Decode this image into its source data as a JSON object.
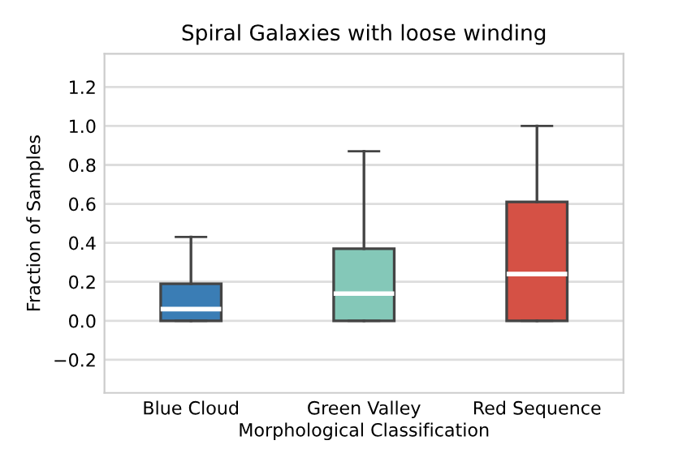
{
  "chart_data": {
    "type": "box",
    "title": "Spiral Galaxies with loose winding",
    "xlabel": "Morphological Classification",
    "ylabel": "Fraction of Samples",
    "categories": [
      "Blue Cloud",
      "Green Valley",
      "Red Sequence"
    ],
    "colors": [
      "#3a7db5",
      "#84c8b8",
      "#d55145"
    ],
    "boxes": [
      {
        "low": 0,
        "q1": 0,
        "median": 0.06,
        "q3": 0.19,
        "high": 0.43
      },
      {
        "low": 0,
        "q1": 0,
        "median": 0.14,
        "q3": 0.37,
        "high": 0.87
      },
      {
        "low": 0,
        "q1": 0,
        "median": 0.24,
        "q3": 0.61,
        "high": 1.0
      }
    ],
    "ylim": [
      -0.37,
      1.37
    ],
    "yticks": [
      {
        "value": -0.2,
        "label": "−0.2"
      },
      {
        "value": 0,
        "label": "0.0"
      },
      0.2,
      0.4,
      0.6,
      0.8,
      {
        "value": 1,
        "label": "1.0"
      },
      1.2
    ],
    "grid": "y"
  }
}
